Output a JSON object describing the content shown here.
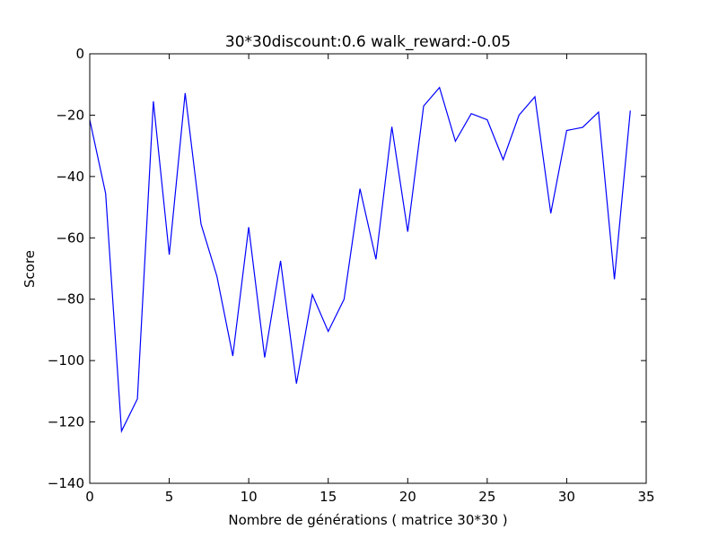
{
  "chart_data": {
    "type": "line",
    "title": "30*30discount:0.6 walk_reward:-0.05",
    "xlabel": "Nombre de générations ( matrice 30*30 )",
    "ylabel": "Score",
    "xlim": [
      0,
      35
    ],
    "ylim": [
      -140,
      0
    ],
    "xticks": [
      0,
      5,
      10,
      15,
      20,
      25,
      30,
      35
    ],
    "yticks": [
      0,
      -20,
      -40,
      -60,
      -80,
      -100,
      -120,
      -140
    ],
    "grid": false,
    "color": "#0000ff",
    "series": [
      {
        "x": [
          0,
          1,
          2,
          3,
          4,
          5,
          6,
          7,
          8,
          9,
          10,
          11,
          12,
          13,
          14,
          15,
          16,
          17,
          18,
          19,
          20,
          21,
          22,
          23,
          24,
          25,
          26,
          27,
          28,
          29,
          30,
          31,
          32,
          33,
          34
        ],
        "values": [
          -21.5,
          -45.5,
          -123,
          -112.5,
          -15.5,
          -65.5,
          -12.8,
          -55.5,
          -72.5,
          -98.5,
          -56.5,
          -99,
          -67.5,
          -107.5,
          -78.5,
          -90.5,
          -80,
          -44,
          -67,
          -23.8,
          -58,
          -17,
          -11,
          -28.5,
          -19.5,
          -21.5,
          -34.5,
          -20,
          -14,
          -52,
          -25,
          -24,
          -19,
          -73.5,
          -18.5
        ]
      }
    ]
  }
}
